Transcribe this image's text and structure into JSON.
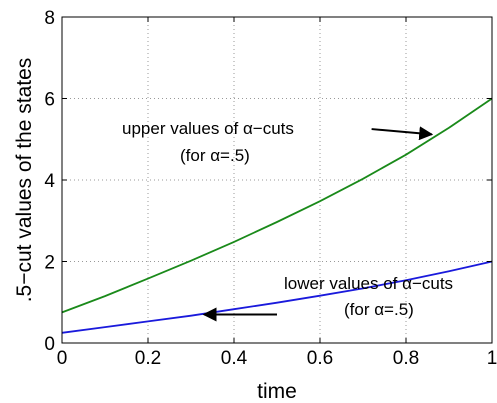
{
  "chart_data": {
    "type": "line",
    "title": "",
    "xlabel": "time",
    "ylabel": ".5−cut values of the states",
    "xlim": [
      0,
      1
    ],
    "ylim": [
      0,
      8
    ],
    "xticks": [
      0,
      0.2,
      0.4,
      0.6,
      0.8,
      1
    ],
    "xtick_labels": [
      "0",
      "0.2",
      "0.4",
      "0.6",
      "0.8",
      "1"
    ],
    "yticks": [
      0,
      2,
      4,
      6,
      8
    ],
    "ytick_labels": [
      "0",
      "2",
      "4",
      "6",
      "8"
    ],
    "grid": true,
    "legend": "none",
    "series": [
      {
        "color": "#1a8a1a",
        "x": [
          0,
          0.1,
          0.2,
          0.3,
          0.4,
          0.5,
          0.6,
          0.7,
          0.8,
          0.9,
          1.0
        ],
        "y": [
          0.75,
          1.15,
          1.58,
          2.02,
          2.48,
          2.97,
          3.48,
          4.03,
          4.62,
          5.28,
          6.0
        ]
      },
      {
        "color": "#1a1adc",
        "x": [
          0,
          0.1,
          0.2,
          0.3,
          0.4,
          0.5,
          0.6,
          0.7,
          0.8,
          0.9,
          1.0
        ],
        "y": [
          0.25,
          0.39,
          0.53,
          0.67,
          0.83,
          0.99,
          1.16,
          1.34,
          1.54,
          1.76,
          2.0
        ]
      }
    ],
    "annotations": [
      {
        "lines": [
          "upper values of α−cuts",
          "(for α=.5)"
        ],
        "arrow_from": [
          0.72,
          5.25
        ],
        "arrow_to": [
          0.86,
          5.12
        ]
      },
      {
        "lines": [
          "lower values of α−cuts",
          "(for α=.5)"
        ],
        "arrow_from": [
          0.5,
          0.7
        ],
        "arrow_to": [
          0.33,
          0.7
        ]
      }
    ]
  }
}
